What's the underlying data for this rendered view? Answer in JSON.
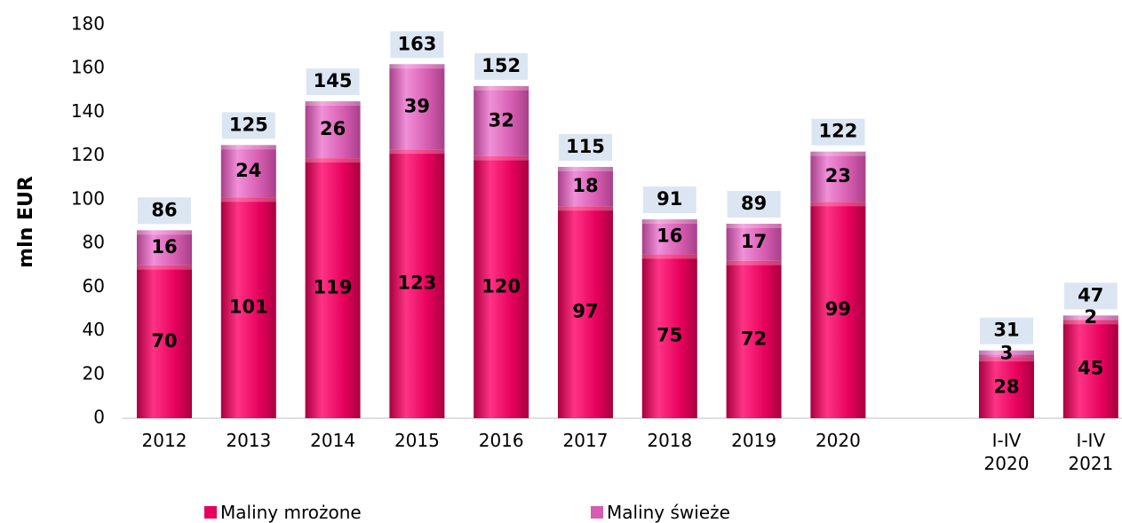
{
  "chart_data": {
    "type": "stacked_bar",
    "y_label": "mln EUR",
    "categories": [
      "2012",
      "2013",
      "2014",
      "2015",
      "2016",
      "2017",
      "2018",
      "2019",
      "2020",
      null,
      "I-IV\n2020",
      "I-IV\n2021"
    ],
    "series": [
      {
        "name": "Maliny mrożone",
        "color": "#e6005c",
        "values": [
          70,
          101,
          119,
          123,
          120,
          97,
          75,
          72,
          99,
          null,
          28,
          45
        ]
      },
      {
        "name": "Maliny świeże",
        "color": "#d65cb0",
        "values": [
          16,
          24,
          26,
          39,
          32,
          18,
          16,
          17,
          23,
          null,
          3,
          2
        ]
      }
    ],
    "totals": [
      86,
      125,
      145,
      163,
      152,
      115,
      91,
      89,
      122,
      null,
      31,
      47
    ],
    "ylim": [
      0,
      180
    ],
    "yticks": [
      0,
      20,
      40,
      60,
      80,
      100,
      120,
      140,
      160,
      180
    ],
    "grid": false
  }
}
